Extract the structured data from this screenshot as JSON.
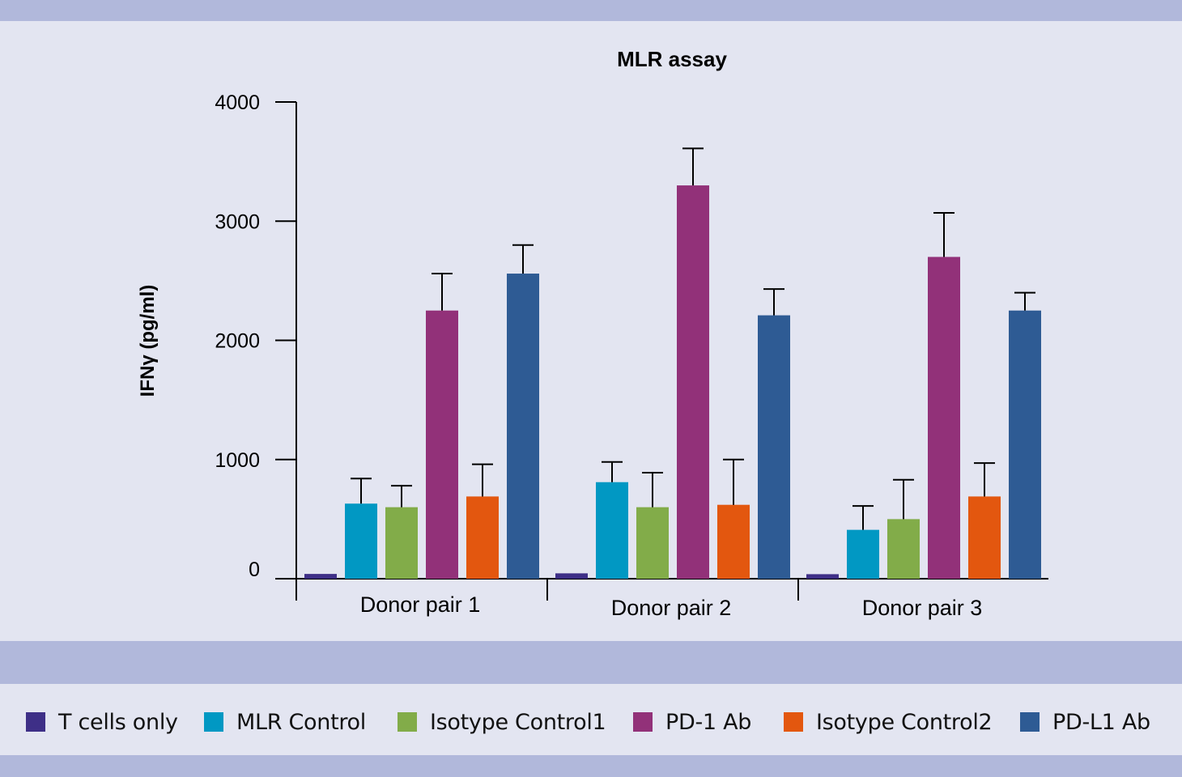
{
  "chart_data": {
    "type": "bar",
    "title": "MLR assay",
    "xlabel": "",
    "ylabel": "IFNγ (pg/ml)",
    "ylim": [
      0,
      4000
    ],
    "yticks": [
      0,
      1000,
      2000,
      3000,
      4000
    ],
    "ytick_labels": [
      "0",
      "1000",
      "2000",
      "3000",
      "4000"
    ],
    "categories": [
      "Donor pair 1",
      "Donor pair 2",
      "Donor pair 3"
    ],
    "series": [
      {
        "name": "T cells only",
        "color": "#3e2f87",
        "values": [
          40,
          45,
          38
        ],
        "errors": [
          0,
          0,
          0
        ]
      },
      {
        "name": "MLR Control",
        "color": "#0198c3",
        "values": [
          630,
          810,
          410
        ],
        "errors": [
          210,
          170,
          200
        ]
      },
      {
        "name": "Isotype Control1",
        "color": "#82ac49",
        "values": [
          600,
          600,
          500
        ],
        "errors": [
          180,
          290,
          330
        ]
      },
      {
        "name": "PD-1 Ab",
        "color": "#923179",
        "values": [
          2250,
          3300,
          2700
        ],
        "errors": [
          310,
          310,
          370
        ]
      },
      {
        "name": "Isotype Control2",
        "color": "#e3570f",
        "values": [
          690,
          620,
          690
        ],
        "errors": [
          270,
          380,
          280
        ]
      },
      {
        "name": "PD-L1 Ab",
        "color": "#2e5b94",
        "values": [
          2560,
          2210,
          2250
        ],
        "errors": [
          240,
          220,
          150
        ]
      }
    ]
  }
}
